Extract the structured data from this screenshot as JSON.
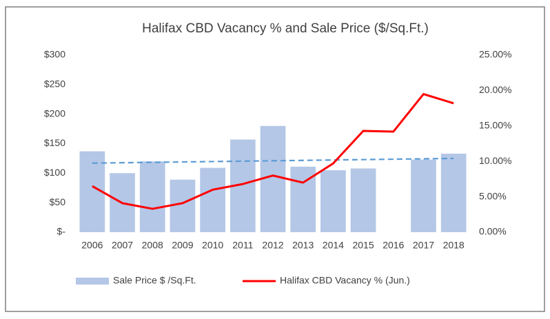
{
  "chart_data": {
    "type": "bar_line",
    "title": "Halifax CBD Vacancy % and Sale Price ($/Sq.Ft.)",
    "categories": [
      "2006",
      "2007",
      "2008",
      "2009",
      "2010",
      "2011",
      "2012",
      "2013",
      "2014",
      "2015",
      "2016",
      "2017",
      "2018"
    ],
    "series": [
      {
        "name": "Sale Price $ /Sq.Ft.",
        "color": "#b4c7e7",
        "type": "bar",
        "values": [
          137,
          100,
          120,
          89,
          109,
          157,
          180,
          111,
          105,
          108,
          null,
          123,
          133
        ]
      },
      {
        "name": "Halifax CBD Vacancy % (Jun.)",
        "color": "#ff0000",
        "type": "line",
        "axis": "y2",
        "values": [
          6.5,
          4.1,
          3.3,
          4.1,
          6.0,
          6.8,
          8.0,
          7.0,
          9.7,
          14.3,
          14.2,
          19.5,
          18.2
        ]
      }
    ],
    "trendline": {
      "color": "#5b9bd5",
      "values": [
        117,
        125
      ]
    },
    "ylim": [
      0,
      300
    ],
    "yticks": [
      {
        "value": 0,
        "label": "$-"
      },
      {
        "value": 50,
        "label": "$50"
      },
      {
        "value": 100,
        "label": "$100"
      },
      {
        "value": 150,
        "label": "$150"
      },
      {
        "value": 200,
        "label": "$200"
      },
      {
        "value": 250,
        "label": "$250"
      },
      {
        "value": 300,
        "label": "$300"
      }
    ],
    "y2lim": [
      0,
      25
    ],
    "y2ticks": [
      {
        "value": 0,
        "label": "0.00%"
      },
      {
        "value": 5,
        "label": "5.00%"
      },
      {
        "value": 10,
        "label": "10.00%"
      },
      {
        "value": 15,
        "label": "15.00%"
      },
      {
        "value": 20,
        "label": "20.00%"
      },
      {
        "value": 25,
        "label": "25.00%"
      }
    ],
    "legend": "bottom"
  }
}
